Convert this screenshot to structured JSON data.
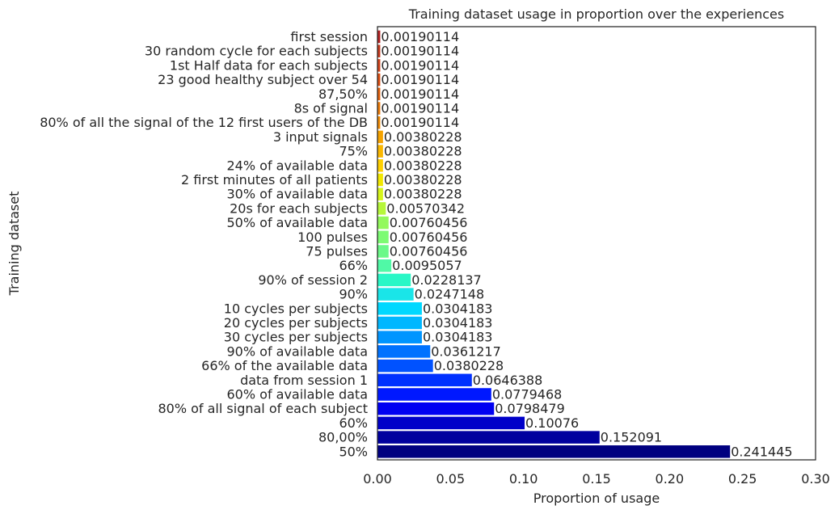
{
  "chart_data": {
    "type": "bar",
    "orientation": "horizontal",
    "title": "Training dataset usage in proportion over the experiences",
    "xlabel": "Proportion of usage",
    "ylabel": "Training dataset",
    "xlim": [
      0,
      0.3
    ],
    "xticks": [
      "0.00",
      "0.05",
      "0.10",
      "0.15",
      "0.20",
      "0.25",
      "0.30"
    ],
    "grid": false,
    "categories": [
      "first session",
      "30 random cycle for each subjects",
      "1st Half data for each subjects",
      "23 good healthy subject over 54",
      "87,50%",
      "8s of signal",
      "80% of all the signal of the 12 first users of the DB",
      "3 input signals",
      "75%",
      "24% of available data",
      "2 first minutes of all patients",
      "30% of available data",
      "20s for each subjects",
      "50% of available data",
      "100 pulses",
      "75 pulses",
      "66%",
      "90% of session 2",
      "90%",
      "10 cycles per subjects",
      "20 cycles per subjects",
      "30 cycles per subjects",
      "90% of available data",
      "66% of the available data",
      "data from session 1",
      "60% of available data",
      "80% of all signal of each subject",
      "60%",
      "80,00%",
      "50%"
    ],
    "values": [
      0.00190114,
      0.00190114,
      0.00190114,
      0.00190114,
      0.00190114,
      0.00190114,
      0.00190114,
      0.00380228,
      0.00380228,
      0.00380228,
      0.00380228,
      0.00380228,
      0.00570342,
      0.00760456,
      0.00760456,
      0.00760456,
      0.0095057,
      0.0228137,
      0.0247148,
      0.0304183,
      0.0304183,
      0.0304183,
      0.0361217,
      0.0380228,
      0.0646388,
      0.0779468,
      0.0798479,
      0.10076,
      0.152091,
      0.241445
    ],
    "value_labels": [
      "0.00190114",
      "0.00190114",
      "0.00190114",
      "0.00190114",
      "0.00190114",
      "0.00190114",
      "0.00190114",
      "0.00380228",
      "0.00380228",
      "0.00380228",
      "0.00380228",
      "0.00380228",
      "0.00570342",
      "0.00760456",
      "0.00760456",
      "0.00760456",
      "0.0095057",
      "0.0228137",
      "0.0247148",
      "0.0304183",
      "0.0304183",
      "0.0304183",
      "0.0361217",
      "0.0380228",
      "0.0646388",
      "0.0779468",
      "0.0798479",
      "0.10076",
      "0.152091",
      "0.241445"
    ],
    "colors": [
      "#b22222",
      "#c43a1e",
      "#d1431a",
      "#db4e12",
      "#e0600d",
      "#ea7a08",
      "#f08c05",
      "#f5a300",
      "#fbb800",
      "#ffd000",
      "#f2e800",
      "#d6f51a",
      "#b6f73a",
      "#93f95c",
      "#7cfb73",
      "#6af989",
      "#50f9a6",
      "#29f7c6",
      "#1ae5e8",
      "#00d8ff",
      "#00b7ff",
      "#0095ff",
      "#0072ff",
      "#0052ff",
      "#0030ff",
      "#0018ff",
      "#0000f2",
      "#0000c9",
      "#00009e",
      "#000080"
    ]
  }
}
